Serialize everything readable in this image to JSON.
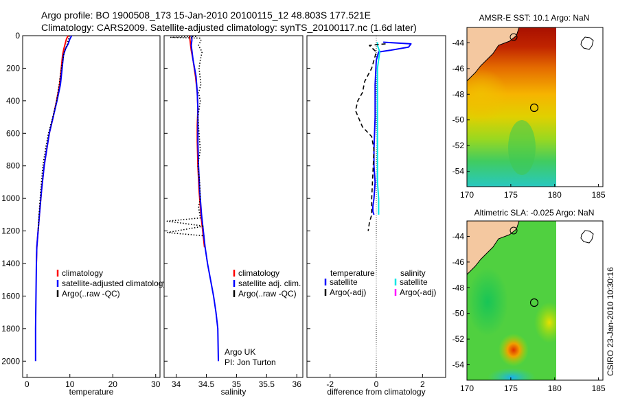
{
  "header": {
    "line1": "Argo profile: BO 1900508_173 15-Jan-2010 20100115_12 48.803S 177.521E",
    "line2": "Climatology: CARS2009. Satellite-adjusted climatology: synTS_20100117.nc (1.6d later)"
  },
  "colors": {
    "clim": "#ff0000",
    "sat": "#0000ff",
    "argo": "#000000",
    "sal_sat": "#00e5e5",
    "sal_argo": "#ff00ff"
  },
  "chart_data": [
    {
      "type": "line",
      "id": "temperature",
      "xlabel": "temperature",
      "ylabel": "",
      "xlim": [
        -1,
        31
      ],
      "ylim": [
        2100,
        0
      ],
      "xticks": [
        0,
        10,
        20,
        30
      ],
      "yticks": [
        0,
        200,
        400,
        600,
        800,
        1000,
        1200,
        1400,
        1600,
        1800,
        2000
      ],
      "legend": [
        "climatology",
        "satellite-adjusted climatology",
        "Argo(..raw -QC)"
      ],
      "series": [
        {
          "name": "climatology",
          "color": "clim",
          "style": "solid",
          "x": [
            9.6,
            9.2,
            8.9,
            8.6,
            8.3,
            8.0,
            7.6,
            6.9,
            6.1,
            5.2,
            4.6,
            4.0,
            3.4,
            2.9,
            2.6,
            2.3,
            2.2
          ],
          "y": [
            0,
            20,
            50,
            80,
            120,
            200,
            300,
            400,
            500,
            600,
            700,
            800,
            950,
            1100,
            1200,
            1300,
            1400
          ]
        },
        {
          "name": "satellite-adjusted climatology",
          "color": "sat",
          "style": "solid",
          "x": [
            10.4,
            10.0,
            9.6,
            9.0,
            8.5,
            8.2,
            7.8,
            7.0,
            6.1,
            5.2,
            4.6,
            4.0,
            3.4,
            2.9,
            2.6,
            2.3,
            2.2,
            2.1,
            2.0,
            2.0
          ],
          "y": [
            0,
            20,
            50,
            80,
            120,
            200,
            300,
            400,
            500,
            600,
            700,
            800,
            950,
            1100,
            1200,
            1300,
            1400,
            1600,
            1800,
            2000
          ]
        },
        {
          "name": "Argo(..raw -QC)",
          "color": "argo",
          "style": "dotted",
          "x": [
            9.9,
            9.4,
            8.7,
            8.0,
            7.5,
            6.9,
            6.0,
            5.0,
            4.3,
            3.7,
            3.2,
            2.8,
            2.6
          ],
          "y": [
            0,
            50,
            100,
            200,
            300,
            400,
            500,
            600,
            700,
            800,
            950,
            1100,
            1200
          ]
        }
      ]
    },
    {
      "type": "line",
      "id": "salinity",
      "xlabel": "salinity",
      "ylabel": "",
      "xlim": [
        33.8,
        36.1
      ],
      "ylim": [
        2100,
        0
      ],
      "xticks": [
        34,
        34.5,
        35,
        35.5,
        36
      ],
      "xticklabels": [
        "34",
        "34.5",
        "35",
        "35.5",
        "36"
      ],
      "legend": [
        "climatology",
        "satellite adj. clim.",
        "Argo(..raw -QC)"
      ],
      "annotation": [
        "Argo UK",
        "PI: Jon Turton"
      ],
      "series": [
        {
          "name": "climatology",
          "color": "clim",
          "style": "solid",
          "x": [
            34.22,
            34.23,
            34.24,
            34.25,
            34.28,
            34.32,
            34.35,
            34.36,
            34.35,
            34.35,
            34.36,
            34.38,
            34.41,
            34.44,
            34.47
          ],
          "y": [
            0,
            30,
            60,
            90,
            150,
            250,
            350,
            450,
            550,
            650,
            800,
            950,
            1100,
            1200,
            1300
          ]
        },
        {
          "name": "satellite adj. clim.",
          "color": "sat",
          "style": "solid",
          "x": [
            34.26,
            34.26,
            34.25,
            34.26,
            34.28,
            34.33,
            34.35,
            34.36,
            34.36,
            34.36,
            34.37,
            34.39,
            34.42,
            34.45,
            34.48,
            34.52,
            34.57,
            34.62,
            34.66,
            34.69,
            34.7
          ],
          "y": [
            0,
            30,
            60,
            90,
            150,
            250,
            350,
            450,
            550,
            650,
            800,
            950,
            1100,
            1200,
            1300,
            1400,
            1500,
            1600,
            1700,
            1800,
            2000
          ]
        },
        {
          "name": "Argo(..raw -QC)",
          "color": "argo",
          "style": "dotted",
          "x": [
            34.33,
            33.9,
            34.4,
            34.41,
            34.37,
            34.43,
            34.4,
            34.38,
            34.41,
            34.37,
            34.4,
            34.36,
            34.38,
            34.4,
            34.36,
            34.39,
            34.4,
            34.37,
            34.4,
            33.85,
            34.46,
            33.85,
            34.47
          ],
          "y": [
            5,
            10,
            15,
            30,
            60,
            100,
            150,
            200,
            300,
            350,
            400,
            500,
            600,
            700,
            800,
            900,
            1000,
            1050,
            1120,
            1140,
            1170,
            1210,
            1230
          ]
        }
      ]
    },
    {
      "type": "line",
      "id": "difference",
      "xlabel": "difference from climatology",
      "ylabel": "",
      "xlim": [
        -3,
        3
      ],
      "ylim": [
        2100,
        0
      ],
      "xticks": [
        -2,
        0,
        2
      ],
      "legend_headers": [
        "temperature",
        "salinity"
      ],
      "legend": [
        "satellite",
        "Argo(-adj)",
        "satellite",
        "Argo(-adj)"
      ],
      "series": [
        {
          "name": "temperature satellite",
          "color": "sat",
          "style": "solid",
          "x": [
            0.3,
            1.5,
            1.4,
            0.6,
            0.1,
            0.0,
            -0.05,
            -0.05,
            -0.1,
            -0.1,
            -0.05,
            -0.1,
            -0.15,
            -0.15,
            -0.1
          ],
          "y": [
            40,
            50,
            70,
            90,
            100,
            150,
            300,
            500,
            700,
            800,
            900,
            1000,
            1050,
            1080,
            1100
          ]
        },
        {
          "name": "salinity satellite",
          "color": "sal_sat",
          "style": "solid",
          "x": [
            0.05,
            0.05,
            0.15,
            0.05,
            0.05,
            0.05,
            0.05,
            0.05,
            0.1,
            0.1,
            0.1
          ],
          "y": [
            40,
            60,
            100,
            200,
            300,
            500,
            700,
            900,
            1000,
            1050,
            1100
          ]
        },
        {
          "name": "temperature Argo(-adj)",
          "color": "argo",
          "style": "dashed",
          "x": [
            0.4,
            -0.3,
            0.0,
            -0.2,
            -0.5,
            -0.6,
            -0.8,
            -0.9,
            -0.6,
            -0.2,
            -0.1,
            -0.15,
            -0.2,
            -0.2,
            -0.3,
            -0.35
          ],
          "y": [
            50,
            60,
            100,
            200,
            280,
            350,
            400,
            460,
            560,
            620,
            700,
            850,
            1000,
            1100,
            1150,
            1200
          ]
        }
      ]
    },
    {
      "type": "heatmap",
      "id": "sst-map",
      "title": "AMSR-E SST: 10.1 Argo: NaN",
      "xlim": [
        170,
        185.5
      ],
      "ylim": [
        -55.2,
        -42.8
      ],
      "xticks": [
        170,
        175,
        180,
        185
      ],
      "yticks": [
        -44,
        -46,
        -48,
        -50,
        -52,
        -54
      ],
      "profile_marker": [
        177.5,
        -48.8
      ]
    },
    {
      "type": "heatmap",
      "id": "sla-map",
      "title": "Altimetric SLA: -0.025 Argo: NaN",
      "xlim": [
        170,
        185.5
      ],
      "ylim": [
        -55.2,
        -42.8
      ],
      "xticks": [
        170,
        175,
        180,
        185
      ],
      "yticks": [
        -44,
        -46,
        -48,
        -50,
        -52,
        -54
      ],
      "profile_marker": [
        177.5,
        -48.8
      ]
    }
  ],
  "footer": {
    "stamp": "CSIRO 23-Jan-2010 10:30:16"
  }
}
